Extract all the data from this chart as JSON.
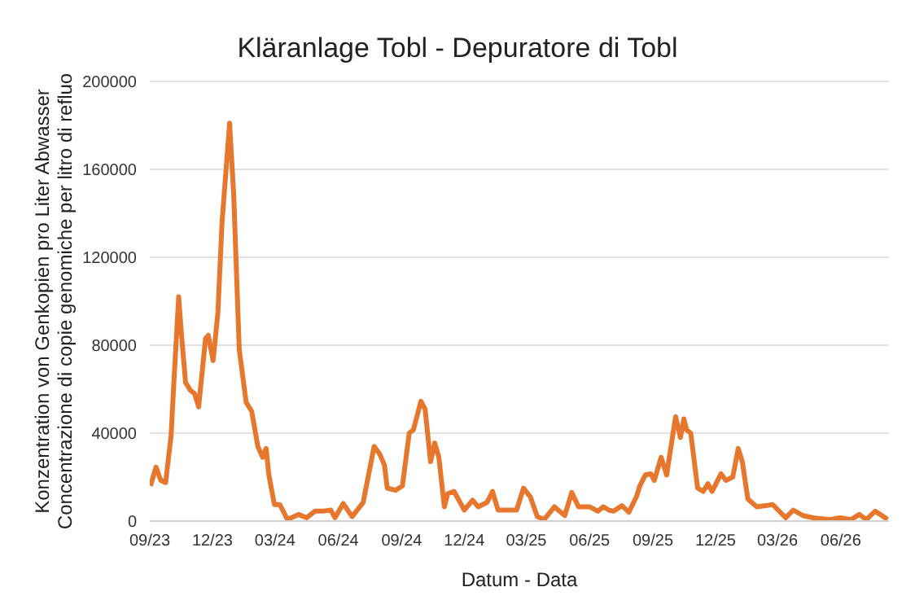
{
  "chart_data": {
    "type": "line",
    "title": "Kläranlage Tobl - Depuratore di Tobl",
    "xlabel": "Datum - Data",
    "ylabel": "Konzentration von Genkopien pro Liter Abwasser\nConcentrazione di copie genomiche per litro di refluo",
    "x": [
      "2023-09-02",
      "2023-09-10",
      "2023-09-17",
      "2023-09-24",
      "2023-10-02",
      "2023-10-06",
      "2023-10-13",
      "2023-10-17",
      "2023-10-23",
      "2023-10-30",
      "2023-11-05",
      "2023-11-11",
      "2023-11-21",
      "2023-11-25",
      "2023-12-02",
      "2023-12-09",
      "2023-12-15",
      "2023-12-26",
      "2024-01-01",
      "2024-01-09",
      "2024-01-19",
      "2024-01-27",
      "2024-02-05",
      "2024-02-12",
      "2024-02-17",
      "2024-02-21",
      "2024-02-29",
      "2024-03-08",
      "2024-03-19",
      "2024-04-04",
      "2024-04-16",
      "2024-04-28",
      "2024-05-09",
      "2024-05-21",
      "2024-05-27",
      "2024-06-08",
      "2024-06-21",
      "2024-07-07",
      "2024-07-23",
      "2024-07-31",
      "2024-08-07",
      "2024-08-11",
      "2024-08-23",
      "2024-09-02",
      "2024-09-12",
      "2024-09-18",
      "2024-09-29",
      "2024-10-05",
      "2024-10-13",
      "2024-10-19",
      "2024-10-25",
      "2024-11-02",
      "2024-11-07",
      "2024-11-16",
      "2024-12-01",
      "2024-12-13",
      "2024-12-21",
      "2025-01-03",
      "2025-01-11",
      "2025-01-19",
      "2025-02-04",
      "2025-02-15",
      "2025-02-25",
      "2025-03-07",
      "2025-03-17",
      "2025-03-27",
      "2025-04-11",
      "2025-04-26",
      "2025-05-06",
      "2025-05-16",
      "2025-06-01",
      "2025-06-13",
      "2025-06-21",
      "2025-06-29",
      "2025-07-06",
      "2025-07-18",
      "2025-07-28",
      "2025-08-08",
      "2025-08-13",
      "2025-08-21",
      "2025-08-29",
      "2025-09-03",
      "2025-09-13",
      "2025-09-21",
      "2025-10-04",
      "2025-10-11",
      "2025-10-16",
      "2025-10-20",
      "2025-10-26",
      "2025-11-05",
      "2025-11-13",
      "2025-11-20",
      "2025-11-26",
      "2025-12-09",
      "2025-12-16",
      "2025-12-26",
      "2026-01-03",
      "2026-01-09",
      "2026-01-17",
      "2026-01-30",
      "2026-02-12",
      "2026-02-22",
      "2026-03-02",
      "2026-03-13",
      "2026-03-24",
      "2026-04-07",
      "2026-04-22",
      "2026-05-16",
      "2026-05-31",
      "2026-06-16",
      "2026-06-28",
      "2026-07-08",
      "2026-07-21",
      "2026-08-08"
    ],
    "series": [
      {
        "color": "#e8772e",
        "values": [
          16000,
          24500,
          18500,
          17500,
          39000,
          63000,
          102000,
          85000,
          63000,
          59500,
          58000,
          52000,
          83000,
          84500,
          73000,
          95000,
          136000,
          181000,
          148000,
          78000,
          54000,
          50000,
          34000,
          29000,
          33000,
          21000,
          7500,
          7500,
          700,
          3000,
          1500,
          4500,
          4500,
          5000,
          1500,
          8000,
          2000,
          8500,
          34000,
          30500,
          25500,
          15000,
          14000,
          16000,
          40000,
          41500,
          54500,
          51000,
          27000,
          35500,
          29000,
          6500,
          12500,
          13500,
          5000,
          9500,
          6500,
          8500,
          13500,
          5000,
          5000,
          5000,
          15000,
          11000,
          2000,
          700,
          6500,
          2500,
          13000,
          6500,
          6500,
          4500,
          6500,
          5000,
          4500,
          7000,
          4000,
          11000,
          16000,
          21000,
          21500,
          18500,
          29000,
          21000,
          47500,
          38000,
          46500,
          41500,
          40000,
          15000,
          13500,
          17000,
          13500,
          21500,
          18500,
          20000,
          33000,
          27000,
          10000,
          6500,
          7000,
          7500,
          5000,
          1500,
          5000,
          2500,
          1500,
          700,
          1500,
          700,
          3000,
          700,
          4500,
          700
        ]
      }
    ],
    "xlim": [
      "2023-09-01",
      "2026-08-10"
    ],
    "xticks": [
      {
        "value": "2023-09-01",
        "label": "09/23"
      },
      {
        "value": "2023-12-01",
        "label": "12/23"
      },
      {
        "value": "2024-03-01",
        "label": "03/24"
      },
      {
        "value": "2024-06-01",
        "label": "06/24"
      },
      {
        "value": "2024-09-01",
        "label": "09/24"
      },
      {
        "value": "2024-12-01",
        "label": "12/24"
      },
      {
        "value": "2025-03-01",
        "label": "03/25"
      },
      {
        "value": "2025-06-01",
        "label": "06/25"
      },
      {
        "value": "2025-09-01",
        "label": "09/25"
      },
      {
        "value": "2025-12-01",
        "label": "12/25"
      },
      {
        "value": "2026-03-01",
        "label": "03/26"
      },
      {
        "value": "2026-06-01",
        "label": "06/26"
      }
    ],
    "ylim": [
      0,
      200000
    ],
    "yticks": [
      0,
      40000,
      80000,
      120000,
      160000,
      200000
    ],
    "grid": "y",
    "legend": false,
    "marker": "none",
    "line_style": "solid"
  }
}
